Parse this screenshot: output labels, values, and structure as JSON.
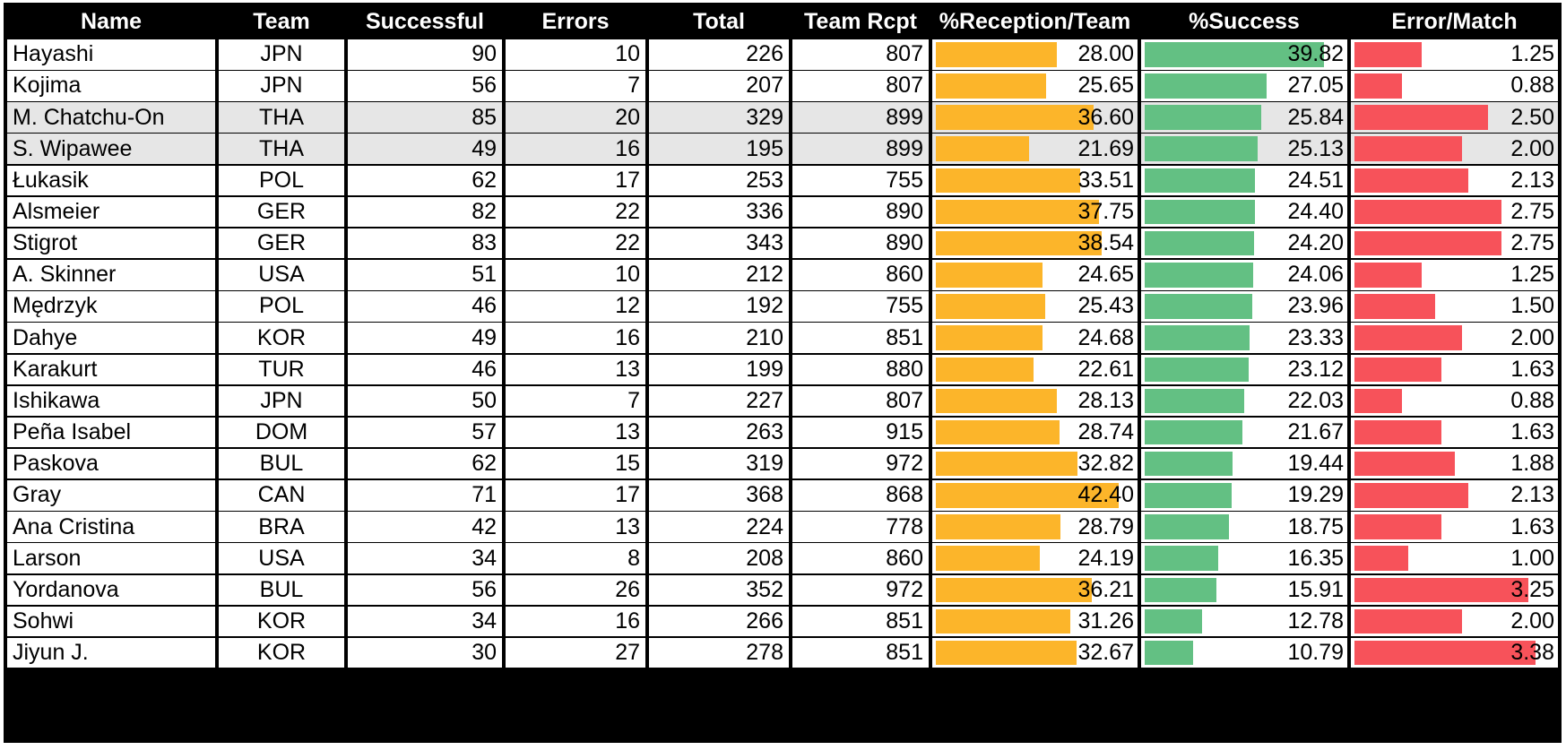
{
  "headers": {
    "name": "Name",
    "team": "Team",
    "successful": "Successful",
    "errors": "Errors",
    "total": "Total",
    "team_rcpt": "Team Rcpt",
    "reception_team": "%Reception/Team",
    "success_pct": "%Success",
    "error_match": "Error/Match"
  },
  "colors": {
    "reception_bar": "#fcb52a",
    "success_bar": "#63c083",
    "error_bar": "#f7525a",
    "highlight_row": "#e6e6e6"
  },
  "bar_scale": {
    "reception_team_max": 42.4,
    "success_pct_max": 39.82,
    "error_match_max": 3.38
  },
  "rows": [
    {
      "name": "Hayashi",
      "team": "JPN",
      "successful": "90",
      "errors": "10",
      "total": "226",
      "team_rcpt": "807",
      "reception_team": "28.00",
      "success_pct": "39.82",
      "error_match": "1.25",
      "highlight": false
    },
    {
      "name": "Kojima",
      "team": "JPN",
      "successful": "56",
      "errors": "7",
      "total": "207",
      "team_rcpt": "807",
      "reception_team": "25.65",
      "success_pct": "27.05",
      "error_match": "0.88",
      "highlight": false
    },
    {
      "name": "M. Chatchu-On",
      "team": "THA",
      "successful": "85",
      "errors": "20",
      "total": "329",
      "team_rcpt": "899",
      "reception_team": "36.60",
      "success_pct": "25.84",
      "error_match": "2.50",
      "highlight": true
    },
    {
      "name": "S. Wipawee",
      "team": "THA",
      "successful": "49",
      "errors": "16",
      "total": "195",
      "team_rcpt": "899",
      "reception_team": "21.69",
      "success_pct": "25.13",
      "error_match": "2.00",
      "highlight": true
    },
    {
      "name": "Łukasik",
      "team": "POL",
      "successful": "62",
      "errors": "17",
      "total": "253",
      "team_rcpt": "755",
      "reception_team": "33.51",
      "success_pct": "24.51",
      "error_match": "2.13",
      "highlight": false
    },
    {
      "name": "Alsmeier",
      "team": "GER",
      "successful": "82",
      "errors": "22",
      "total": "336",
      "team_rcpt": "890",
      "reception_team": "37.75",
      "success_pct": "24.40",
      "error_match": "2.75",
      "highlight": false
    },
    {
      "name": "Stigrot",
      "team": "GER",
      "successful": "83",
      "errors": "22",
      "total": "343",
      "team_rcpt": "890",
      "reception_team": "38.54",
      "success_pct": "24.20",
      "error_match": "2.75",
      "highlight": false
    },
    {
      "name": "A. Skinner",
      "team": "USA",
      "successful": "51",
      "errors": "10",
      "total": "212",
      "team_rcpt": "860",
      "reception_team": "24.65",
      "success_pct": "24.06",
      "error_match": "1.25",
      "highlight": false
    },
    {
      "name": "Mędrzyk",
      "team": "POL",
      "successful": "46",
      "errors": "12",
      "total": "192",
      "team_rcpt": "755",
      "reception_team": "25.43",
      "success_pct": "23.96",
      "error_match": "1.50",
      "highlight": false
    },
    {
      "name": "Dahye",
      "team": "KOR",
      "successful": "49",
      "errors": "16",
      "total": "210",
      "team_rcpt": "851",
      "reception_team": "24.68",
      "success_pct": "23.33",
      "error_match": "2.00",
      "highlight": false
    },
    {
      "name": "Karakurt",
      "team": "TUR",
      "successful": "46",
      "errors": "13",
      "total": "199",
      "team_rcpt": "880",
      "reception_team": "22.61",
      "success_pct": "23.12",
      "error_match": "1.63",
      "highlight": false
    },
    {
      "name": "Ishikawa",
      "team": "JPN",
      "successful": "50",
      "errors": "7",
      "total": "227",
      "team_rcpt": "807",
      "reception_team": "28.13",
      "success_pct": "22.03",
      "error_match": "0.88",
      "highlight": false
    },
    {
      "name": "Peña Isabel",
      "team": "DOM",
      "successful": "57",
      "errors": "13",
      "total": "263",
      "team_rcpt": "915",
      "reception_team": "28.74",
      "success_pct": "21.67",
      "error_match": "1.63",
      "highlight": false
    },
    {
      "name": "Paskova",
      "team": "BUL",
      "successful": "62",
      "errors": "15",
      "total": "319",
      "team_rcpt": "972",
      "reception_team": "32.82",
      "success_pct": "19.44",
      "error_match": "1.88",
      "highlight": false
    },
    {
      "name": "Gray",
      "team": "CAN",
      "successful": "71",
      "errors": "17",
      "total": "368",
      "team_rcpt": "868",
      "reception_team": "42.40",
      "success_pct": "19.29",
      "error_match": "2.13",
      "highlight": false
    },
    {
      "name": "Ana Cristina",
      "team": "BRA",
      "successful": "42",
      "errors": "13",
      "total": "224",
      "team_rcpt": "778",
      "reception_team": "28.79",
      "success_pct": "18.75",
      "error_match": "1.63",
      "highlight": false
    },
    {
      "name": "Larson",
      "team": "USA",
      "successful": "34",
      "errors": "8",
      "total": "208",
      "team_rcpt": "860",
      "reception_team": "24.19",
      "success_pct": "16.35",
      "error_match": "1.00",
      "highlight": false
    },
    {
      "name": "Yordanova",
      "team": "BUL",
      "successful": "56",
      "errors": "26",
      "total": "352",
      "team_rcpt": "972",
      "reception_team": "36.21",
      "success_pct": "15.91",
      "error_match": "3.25",
      "highlight": false
    },
    {
      "name": "Sohwi",
      "team": "KOR",
      "successful": "34",
      "errors": "16",
      "total": "266",
      "team_rcpt": "851",
      "reception_team": "31.26",
      "success_pct": "12.78",
      "error_match": "2.00",
      "highlight": false
    },
    {
      "name": "Jiyun J.",
      "team": "KOR",
      "successful": "30",
      "errors": "27",
      "total": "278",
      "team_rcpt": "851",
      "reception_team": "32.67",
      "success_pct": "10.79",
      "error_match": "3.38",
      "highlight": false
    }
  ]
}
